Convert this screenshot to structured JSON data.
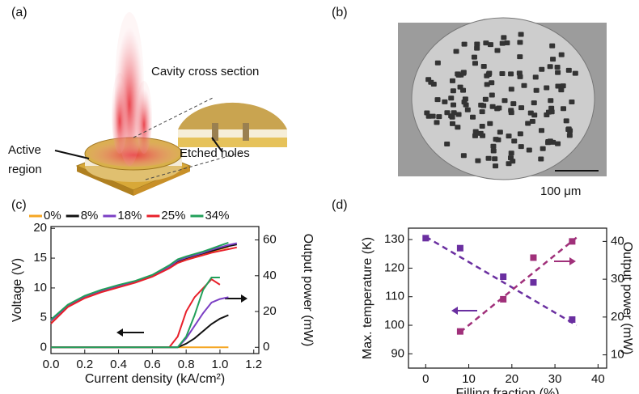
{
  "panels": {
    "a": {
      "label": "(a)",
      "inset_title": "Cavity cross section",
      "active": "Active region",
      "holes": "Etched holes"
    },
    "b": {
      "label": "(b)",
      "scale": "100 μm"
    }
  },
  "chart_data": [
    {
      "type": "line",
      "panel": "(c)",
      "xlabel": "Current density (kA/cm²)",
      "ylabel": "Voltage (V)",
      "y2label": "Output power (mW)",
      "x": [
        0,
        0.1,
        0.2,
        0.3,
        0.4,
        0.5,
        0.6,
        0.7,
        0.75,
        0.8,
        0.85,
        0.9,
        0.95,
        1.0,
        1.05,
        1.1
      ],
      "xlim": [
        0,
        1.23
      ],
      "ylim": [
        -1,
        20.3
      ],
      "y2lim": [
        -3.5,
        67.5
      ],
      "xticks": [
        {
          "value": 0,
          "label": "0.0"
        },
        {
          "value": 0.2,
          "label": "0.2"
        },
        {
          "value": 0.4,
          "label": "0.4"
        },
        {
          "value": 0.6,
          "label": "0.6"
        },
        {
          "value": 0.8,
          "label": "0.8"
        },
        {
          "value": 1.0,
          "label": "1.0"
        },
        {
          "value": 1.2,
          "label": "1.2"
        }
      ],
      "yticks": [
        0,
        5,
        10,
        15,
        20
      ],
      "y2ticks": [
        0,
        20,
        40,
        60
      ],
      "series": [
        {
          "color": "#f5a623",
          "axis": "y",
          "values": [
            4.4,
            7,
            8.5,
            9.5,
            10.3,
            11,
            12,
            13.5,
            14.4,
            14.9,
            15.3,
            15.7,
            16.1,
            16.5,
            16.9,
            null
          ]
        },
        {
          "color": "#111111",
          "axis": "y",
          "values": [
            4.6,
            7.1,
            8.6,
            9.6,
            10.4,
            11.1,
            12.1,
            13.6,
            14.5,
            15,
            15.4,
            15.8,
            16.2,
            16.6,
            17,
            17.3
          ]
        },
        {
          "color": "#7b3fc4",
          "axis": "y",
          "values": [
            4.5,
            7.1,
            8.6,
            9.6,
            10.4,
            11.1,
            12.1,
            13.6,
            14.6,
            15.1,
            15.5,
            15.9,
            16.4,
            16.8,
            17.2,
            17.5
          ]
        },
        {
          "color": "#e8202a",
          "axis": "y",
          "values": [
            4,
            6.8,
            8.3,
            9.3,
            10.1,
            10.9,
            11.9,
            13.3,
            14.2,
            14.7,
            15.1,
            15.5,
            15.9,
            16.2,
            16.5,
            16.8
          ]
        },
        {
          "color": "#22a05a",
          "axis": "y",
          "values": [
            4.7,
            7.2,
            8.7,
            9.7,
            10.5,
            11.2,
            12.2,
            13.8,
            14.8,
            15.3,
            15.7,
            16.1,
            16.6,
            17.1,
            17.6,
            null
          ]
        },
        {
          "name": "0%",
          "color": "#f5a623",
          "axis": "y2",
          "values": [
            0,
            0,
            0,
            0,
            0,
            0,
            0,
            0,
            0,
            0,
            0,
            0,
            0,
            0,
            0,
            null
          ]
        },
        {
          "name": "8%",
          "color": "#111111",
          "axis": "y2",
          "values": [
            0,
            0,
            0,
            0,
            0,
            0,
            0,
            0,
            0,
            2,
            5,
            9,
            13,
            16,
            18,
            null
          ]
        },
        {
          "name": "18%",
          "color": "#7b3fc4",
          "axis": "y2",
          "values": [
            0,
            0,
            0,
            0,
            0,
            0,
            0,
            0,
            0,
            5,
            12,
            19,
            25,
            27,
            28,
            null
          ]
        },
        {
          "name": "25%",
          "color": "#e8202a",
          "axis": "y2",
          "values": [
            0,
            0,
            0,
            0,
            0,
            0,
            0,
            0,
            6,
            20,
            28,
            33,
            38,
            35,
            null,
            null
          ]
        },
        {
          "name": "34%",
          "color": "#22a05a",
          "axis": "y2",
          "values": [
            0,
            0,
            0,
            0,
            0,
            0,
            0,
            0,
            0,
            6,
            18,
            32,
            39,
            39,
            null,
            null
          ]
        }
      ]
    },
    {
      "type": "scatter",
      "panel": "(d)",
      "xlabel": "Filling fraction (%)",
      "ylabel": "Max. temperature (K)",
      "y2label": "Output power (mW)",
      "xlim": [
        -4,
        42
      ],
      "ylim": [
        85,
        134
      ],
      "y2lim": [
        6.5,
        43.5
      ],
      "xticks": [
        0,
        10,
        20,
        30,
        40
      ],
      "yticks": [
        90,
        100,
        110,
        120,
        130
      ],
      "y2ticks": [
        10,
        20,
        30,
        40
      ],
      "series": [
        {
          "color": "#6a2fa0",
          "axis": "y",
          "mode": "dashed",
          "x": [
            0,
            35
          ],
          "values": [
            131,
            100
          ]
        },
        {
          "color": "#a0307a",
          "axis": "y2",
          "mode": "dashed",
          "x": [
            8,
            35
          ],
          "values": [
            16,
            41
          ]
        },
        {
          "color": "#6a2fa0",
          "axis": "y",
          "mode": "markers",
          "x": [
            0,
            8,
            18,
            25,
            34
          ],
          "values": [
            130.5,
            127,
            117,
            115,
            102
          ]
        },
        {
          "color": "#a0307a",
          "axis": "y2",
          "mode": "markers",
          "x": [
            8,
            18,
            25,
            34
          ],
          "values": [
            16.2,
            24.7,
            35.7,
            40
          ]
        }
      ]
    }
  ]
}
